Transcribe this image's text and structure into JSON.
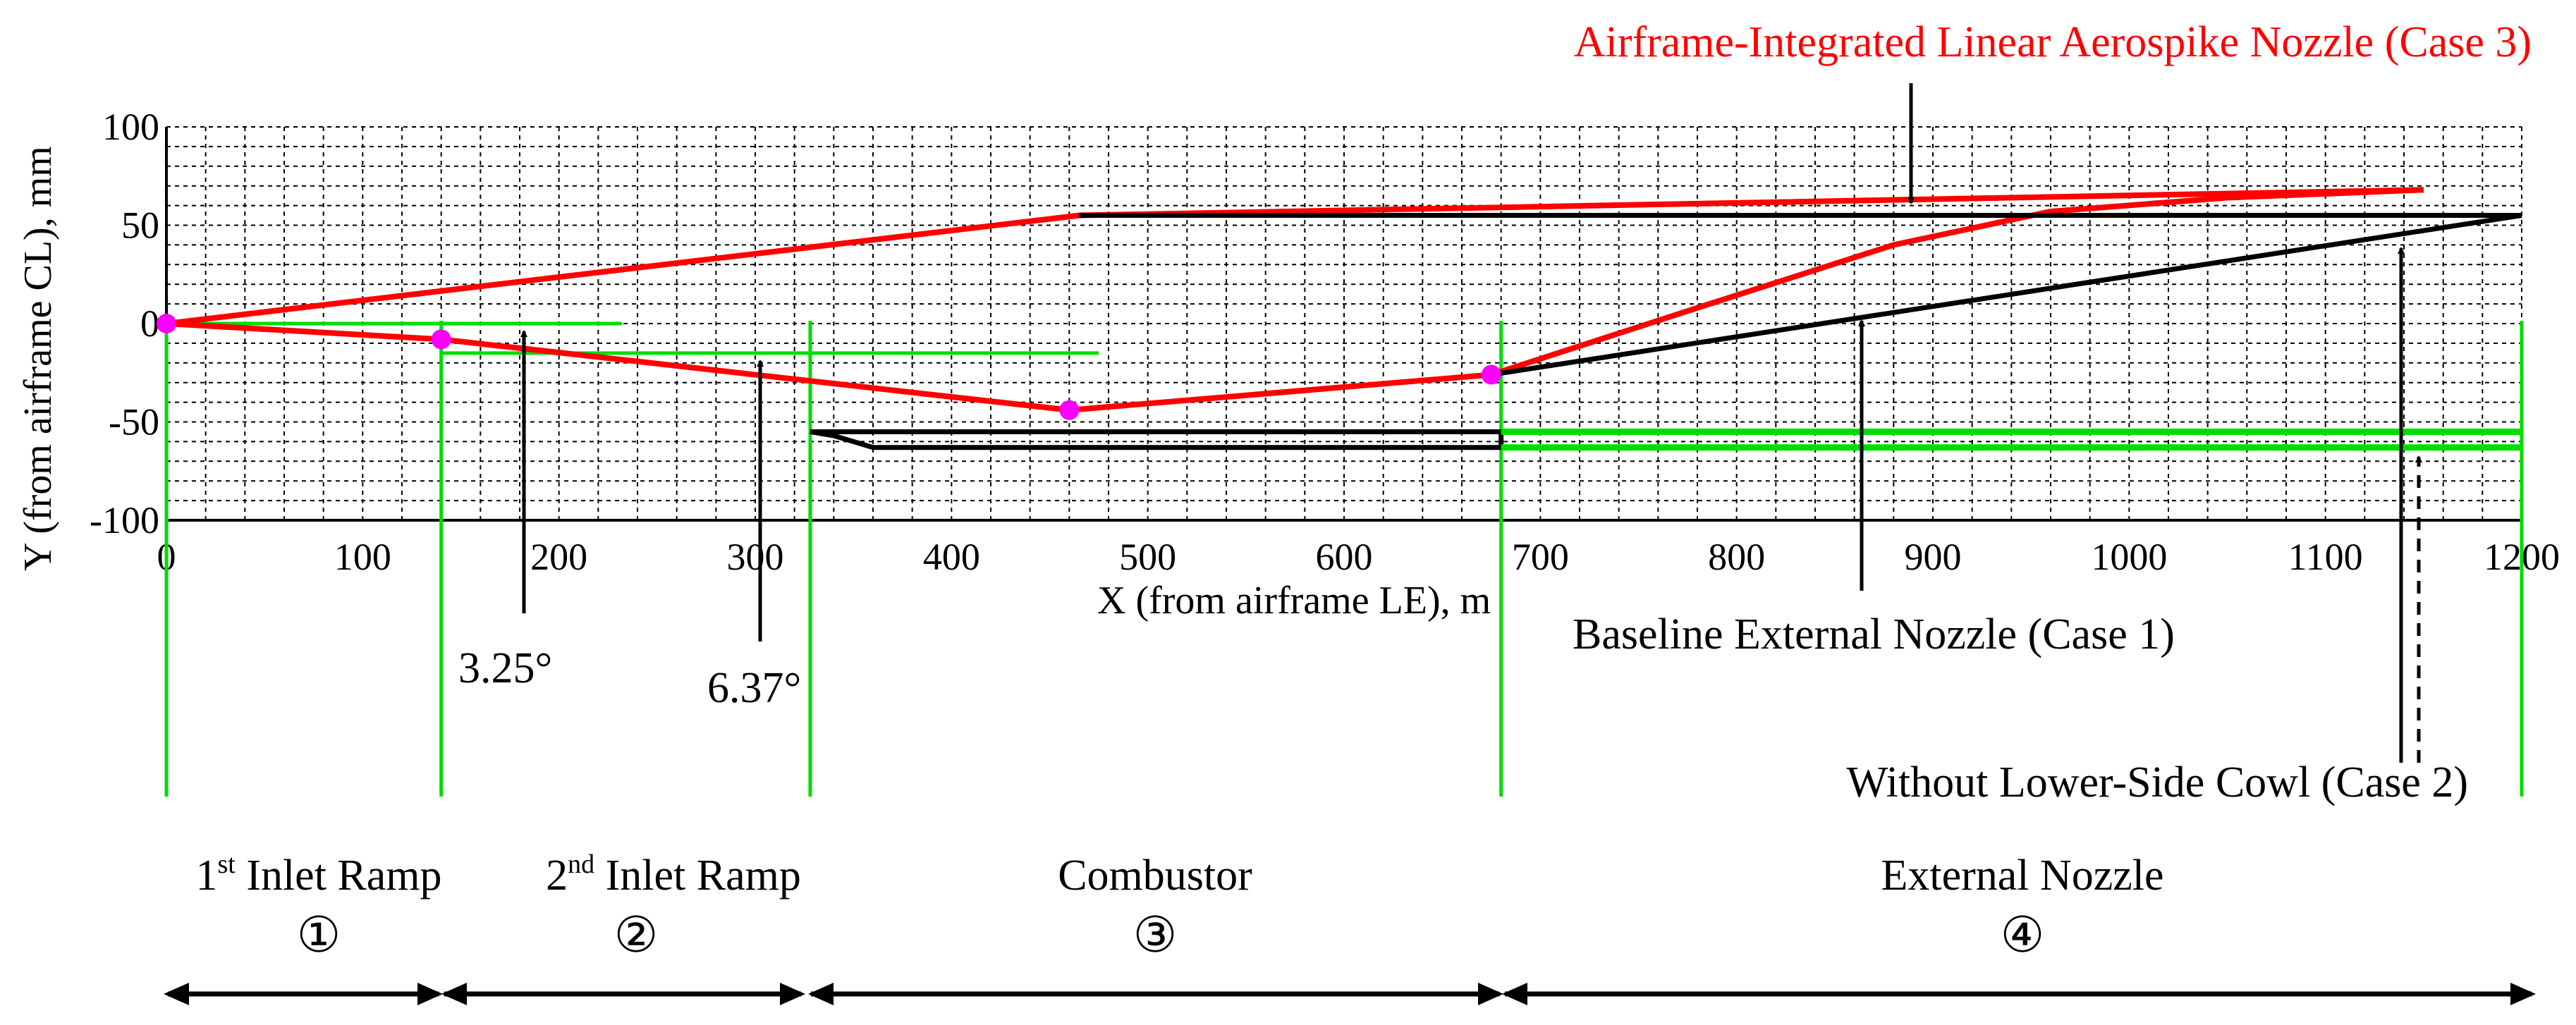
{
  "chart_data": {
    "type": "line",
    "title": "",
    "xlabel": "X (from airframe LE), m",
    "ylabel": "Y (from airframe CL), mm",
    "xlim": [
      0,
      1200
    ],
    "ylim": [
      -100,
      100
    ],
    "xticks": [
      "0",
      "100",
      "200",
      "300",
      "400",
      "500",
      "600",
      "700",
      "800",
      "900",
      "1000",
      "1100",
      "1200"
    ],
    "yticks": [
      "100",
      "50",
      "0",
      "-50",
      "-100"
    ],
    "grid": true,
    "series": [
      {
        "name": "Airframe-Integrated Linear Aerospike Nozzle (Case 3)",
        "color": "#ff0000",
        "x": [
          0,
          140,
          300,
          460,
          675,
          780,
          880,
          960,
          1050,
          1150
        ],
        "y": [
          0,
          -8,
          -26,
          -44,
          -26,
          8,
          40,
          57,
          64,
          68
        ]
      },
      {
        "name": "Airframe-Integrated Linear Aerospike Nozzle (Case 3) - upper surface",
        "color": "#ff0000",
        "x": [
          0,
          465,
          1150
        ],
        "y": [
          0,
          55,
          68
        ]
      },
      {
        "name": "Baseline External Nozzle (Case 1)",
        "color": "#000000",
        "x": [
          675,
          1200
        ],
        "y": [
          -26,
          55
        ]
      },
      {
        "name": "Airframe upper surface",
        "color": "#000000",
        "x": [
          465,
          1200
        ],
        "y": [
          55,
          55
        ]
      },
      {
        "name": "Cowl",
        "color": "#000000",
        "x": [
          328,
          340,
          360,
          680,
          680,
          328
        ],
        "y": [
          -55,
          -57,
          -63,
          -63,
          -55,
          -55
        ]
      },
      {
        "name": "Without Lower-Side Cowl (Case 2)",
        "color": "#00dd00",
        "x": [
          680,
          1200
        ],
        "y": [
          -55,
          -55
        ]
      },
      {
        "name": "Cowl extension lower line",
        "color": "#00dd00",
        "x": [
          680,
          1200
        ],
        "y": [
          -63,
          -63
        ]
      }
    ],
    "reference_lines": [
      {
        "x": [
          0,
          232
        ],
        "y": [
          0,
          0
        ]
      },
      {
        "x": [
          140,
          475
        ],
        "y": [
          -15,
          -15
        ]
      }
    ],
    "section_boundaries_x": [
      0,
      140,
      328,
      680,
      1200
    ],
    "points": [
      {
        "x": 0,
        "y": 0
      },
      {
        "x": 140,
        "y": -8
      },
      {
        "x": 460,
        "y": -44
      },
      {
        "x": 675,
        "y": -26
      }
    ],
    "annotations": [
      {
        "text": "3.25°",
        "x": 182,
        "y": -5
      },
      {
        "text": "6.37°",
        "x": 303,
        "y": -22
      },
      {
        "text": "Airframe-Integrated Linear Aerospike Nozzle (Case 3)",
        "x": 890,
        "y": 61
      },
      {
        "text": "Baseline External Nozzle (Case 1)",
        "x": 868,
        "y": 5
      },
      {
        "text": "Without Lower-Side Cowl (Case 2)",
        "x": 1142,
        "y": 50
      }
    ],
    "sections": [
      {
        "label": "1st Inlet Ramp",
        "symbol": "①"
      },
      {
        "label": "2nd Inlet Ramp",
        "symbol": "②"
      },
      {
        "label": "Combustor",
        "symbol": "③"
      },
      {
        "label": "External Nozzle",
        "symbol": "④"
      }
    ],
    "colors": {
      "case3": "#ff0000",
      "baseline": "#000000",
      "guide": "#00dd00",
      "marker": "#ff00ff"
    }
  },
  "labels": {
    "case3": "Airframe-Integrated Linear Aerospike Nozzle (Case 3)",
    "case1": "Baseline External Nozzle (Case 1)",
    "case2": "Without Lower-Side Cowl (Case 2)",
    "angle1": "3.25°",
    "angle2": "6.37°",
    "xlabel": "X (from airframe LE), m",
    "ylabel": "Y (from airframe CL), mm"
  },
  "sections": [
    {
      "num": "1",
      "sup": "st",
      "rest": " Inlet Ramp",
      "symbol": "①"
    },
    {
      "num": "2",
      "sup": "nd",
      "rest": " Inlet Ramp",
      "symbol": "②"
    },
    {
      "label": "Combustor",
      "symbol": "③"
    },
    {
      "label": "External Nozzle",
      "symbol": "④"
    }
  ]
}
